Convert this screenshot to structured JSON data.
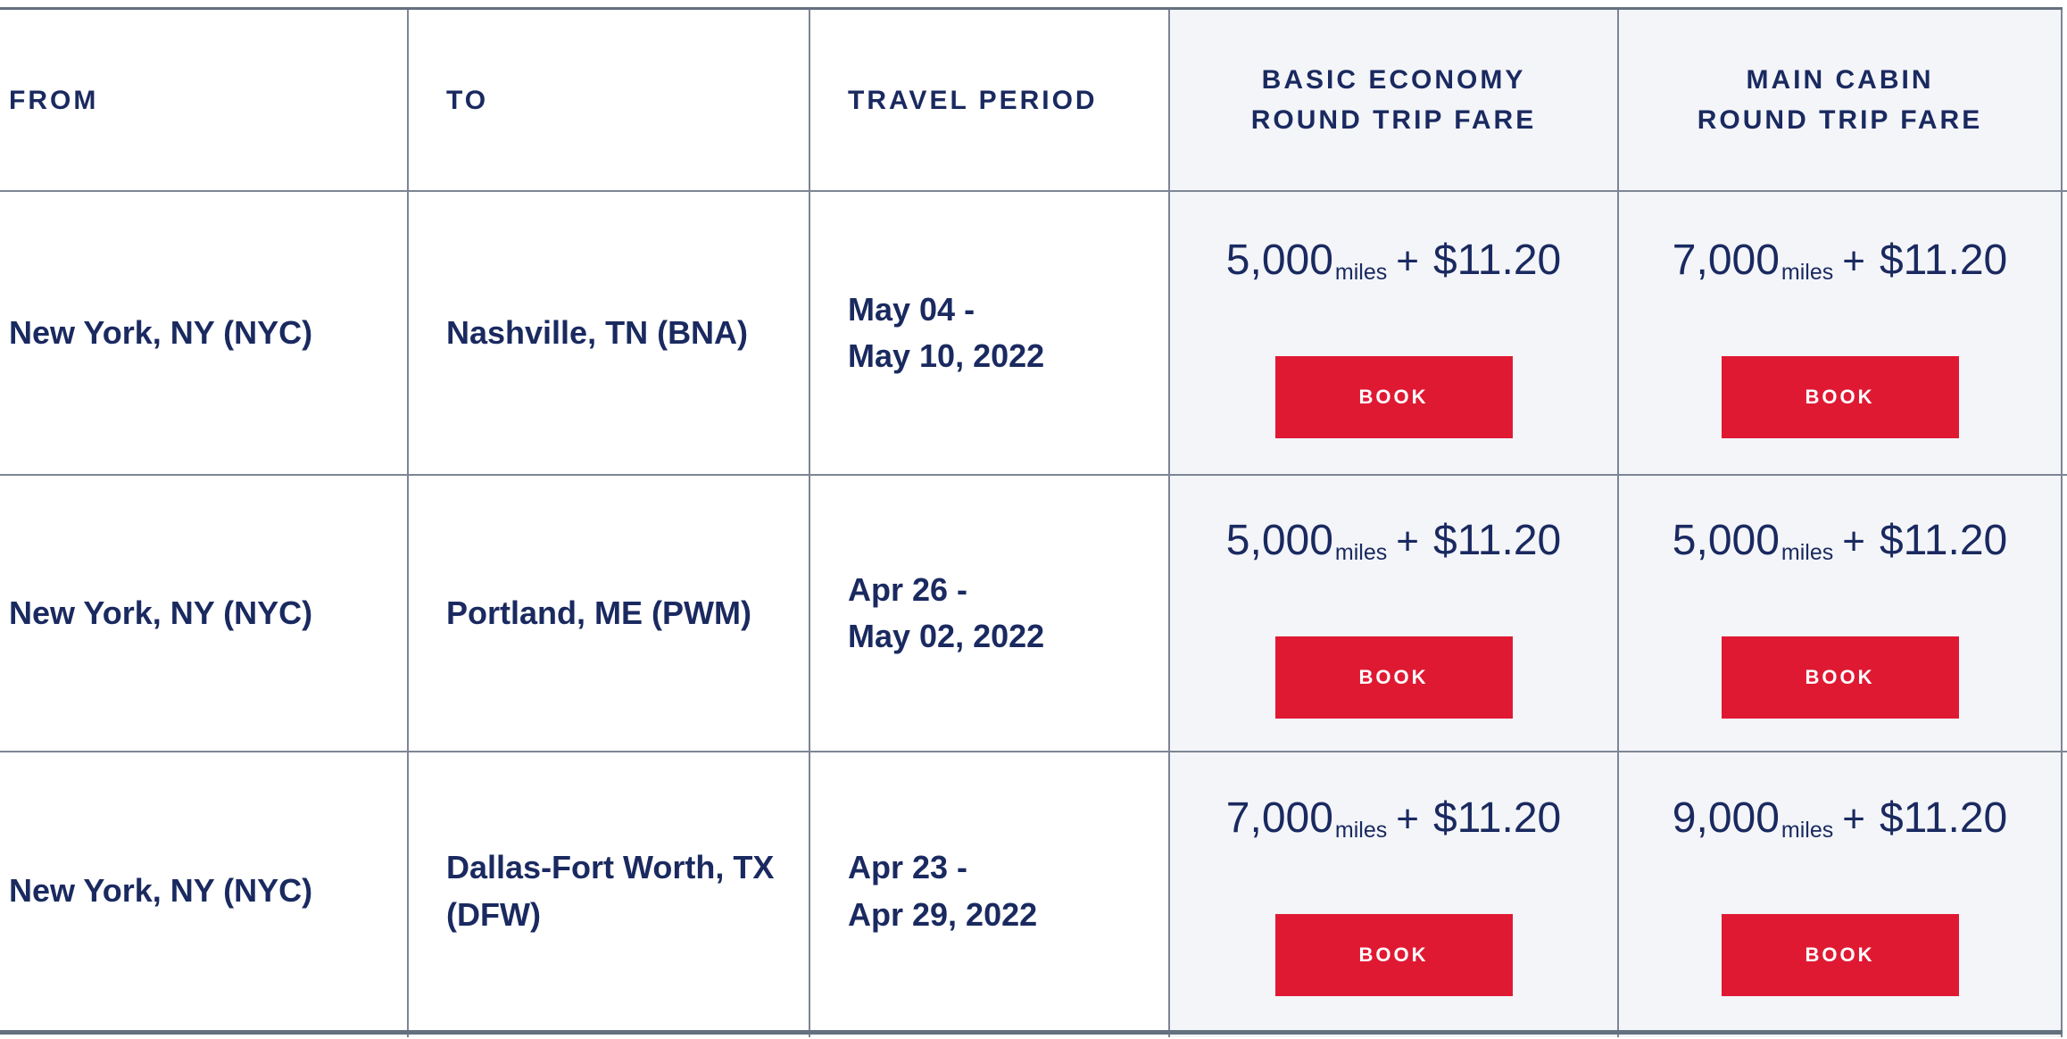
{
  "table": {
    "columns": [
      {
        "label": "FROM"
      },
      {
        "label": "TO"
      },
      {
        "label": "TRAVEL PERIOD"
      },
      {
        "label": "BASIC ECONOMY\nROUND TRIP FARE"
      },
      {
        "label": "MAIN CABIN\nROUND TRIP FARE"
      }
    ],
    "rows": [
      {
        "from": "New York, NY (NYC)",
        "to": "Nashville, TN (BNA)",
        "travel_period": "May 04 -\nMay 10, 2022",
        "basic_economy": {
          "miles": "5,000",
          "miles_label": "miles",
          "plus": "+",
          "price": "$11.20",
          "cta": "BOOK"
        },
        "main_cabin": {
          "miles": "7,000",
          "miles_label": "miles",
          "plus": "+",
          "price": "$11.20",
          "cta": "BOOK"
        }
      },
      {
        "from": "New York, NY (NYC)",
        "to": "Portland, ME (PWM)",
        "travel_period": "Apr 26 -\nMay 02, 2022",
        "basic_economy": {
          "miles": "5,000",
          "miles_label": "miles",
          "plus": "+",
          "price": "$11.20",
          "cta": "BOOK"
        },
        "main_cabin": {
          "miles": "5,000",
          "miles_label": "miles",
          "plus": "+",
          "price": "$11.20",
          "cta": "BOOK"
        }
      },
      {
        "from": "New York, NY (NYC)",
        "to": "Dallas-Fort Worth, TX\n(DFW)",
        "travel_period": "Apr 23 -\nApr 29, 2022",
        "basic_economy": {
          "miles": "7,000",
          "miles_label": "miles",
          "plus": "+",
          "price": "$11.20",
          "cta": "BOOK"
        },
        "main_cabin": {
          "miles": "9,000",
          "miles_label": "miles",
          "plus": "+",
          "price": "$11.20",
          "cta": "BOOK"
        }
      }
    ]
  },
  "colors": {
    "navy_text": "#1a2a60",
    "book_button_red": "#e01933",
    "fare_column_background": "#f4f5f9",
    "border_dark": "#65707f",
    "border_mid": "#7d8594"
  }
}
